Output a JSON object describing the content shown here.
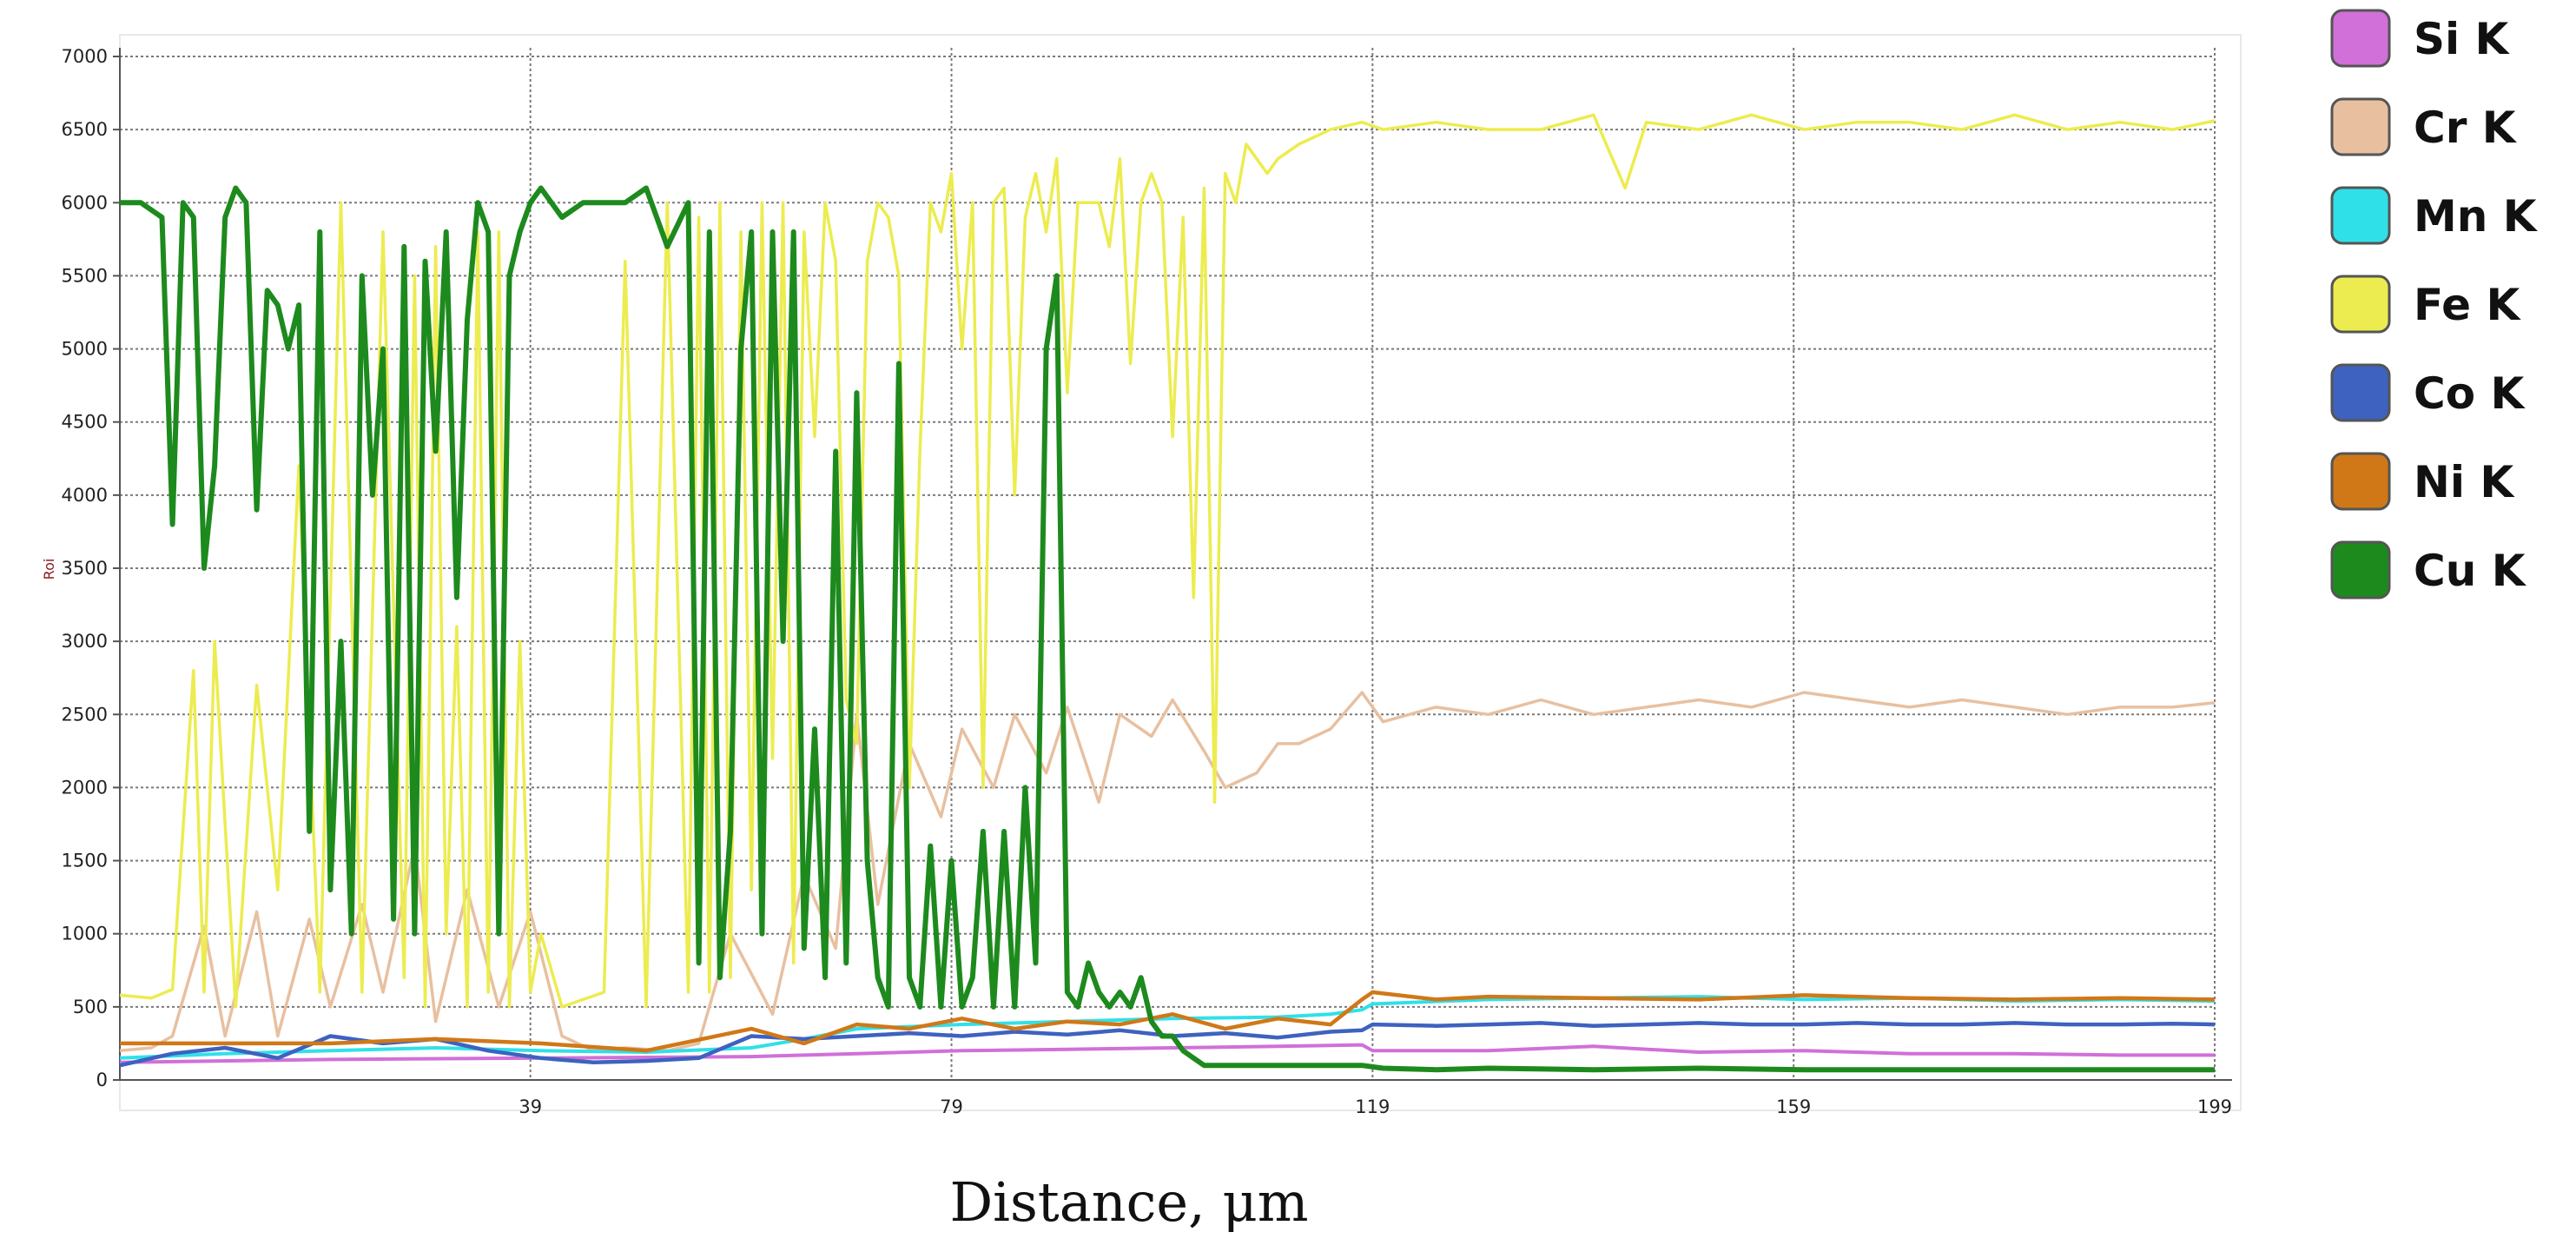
{
  "chart_data": {
    "type": "line",
    "xlabel": "Distance, μm",
    "ylabel": "Roi",
    "xlim": [
      0,
      199
    ],
    "ylim": [
      0,
      7000
    ],
    "xticks": [
      39,
      79,
      119,
      159,
      199
    ],
    "yticks": [
      0,
      500,
      1000,
      1500,
      2000,
      2500,
      3000,
      3500,
      4000,
      4500,
      5000,
      5500,
      6000,
      6500,
      7000
    ],
    "grid": true,
    "legend_position": "right",
    "series": [
      {
        "name": "Si K",
        "color": "#d070d8",
        "x": [
          0,
          20,
          40,
          60,
          70,
          80,
          90,
          100,
          110,
          118,
          119,
          130,
          140,
          150,
          160,
          170,
          180,
          190,
          199
        ],
        "y": [
          120,
          140,
          150,
          160,
          180,
          200,
          210,
          220,
          230,
          240,
          200,
          200,
          230,
          190,
          200,
          180,
          180,
          170,
          170
        ]
      },
      {
        "name": "Cr K",
        "color": "#e8c0a0",
        "x": [
          0,
          3,
          5,
          8,
          10,
          13,
          15,
          18,
          20,
          23,
          25,
          28,
          30,
          33,
          36,
          39,
          42,
          45,
          48,
          52,
          55,
          58,
          62,
          65,
          68,
          70,
          72,
          75,
          78,
          80,
          83,
          85,
          88,
          90,
          93,
          95,
          98,
          100,
          103,
          105,
          108,
          110,
          112,
          115,
          118,
          120,
          125,
          130,
          135,
          140,
          145,
          150,
          155,
          160,
          165,
          170,
          175,
          180,
          185,
          190,
          195,
          199
        ],
        "y": [
          200,
          220,
          300,
          1050,
          300,
          1150,
          300,
          1100,
          500,
          1200,
          600,
          1600,
          400,
          1300,
          500,
          1150,
          300,
          200,
          220,
          200,
          250,
          1000,
          450,
          1400,
          900,
          2500,
          1200,
          2300,
          1800,
          2400,
          2000,
          2500,
          2100,
          2550,
          1900,
          2500,
          2350,
          2600,
          2250,
          2000,
          2100,
          2300,
          2300,
          2400,
          2650,
          2450,
          2550,
          2500,
          2600,
          2500,
          2550,
          2600,
          2550,
          2650,
          2600,
          2550,
          2600,
          2550,
          2500,
          2550,
          2550,
          2580
        ]
      },
      {
        "name": "Mn K",
        "color": "#30e0e8",
        "x": [
          0,
          10,
          20,
          30,
          40,
          50,
          60,
          65,
          70,
          80,
          90,
          100,
          110,
          115,
          118,
          119,
          130,
          140,
          150,
          160,
          170,
          180,
          190,
          199
        ],
        "y": [
          150,
          180,
          200,
          220,
          200,
          190,
          220,
          280,
          350,
          380,
          400,
          420,
          430,
          450,
          480,
          520,
          550,
          560,
          570,
          550,
          560,
          540,
          550,
          540
        ]
      },
      {
        "name": "Fe K",
        "color": "#ecec50",
        "x": [
          0,
          3,
          5,
          7,
          8,
          9,
          11,
          13,
          15,
          17,
          19,
          21,
          23,
          25,
          27,
          28,
          29,
          30,
          31,
          32,
          33,
          34,
          35,
          36,
          37,
          38,
          39,
          40,
          42,
          44,
          46,
          48,
          50,
          52,
          54,
          55,
          56,
          57,
          58,
          59,
          60,
          61,
          62,
          63,
          64,
          65,
          66,
          67,
          68,
          69,
          70,
          71,
          72,
          73,
          74,
          75,
          76,
          77,
          78,
          79,
          80,
          81,
          82,
          83,
          84,
          85,
          86,
          87,
          88,
          89,
          90,
          91,
          92,
          93,
          94,
          95,
          96,
          97,
          98,
          99,
          100,
          101,
          102,
          103,
          104,
          105,
          106,
          107,
          108,
          109,
          110,
          112,
          115,
          118,
          120,
          125,
          130,
          135,
          140,
          143,
          145,
          150,
          155,
          160,
          165,
          170,
          175,
          180,
          185,
          190,
          195,
          199
        ],
        "y": [
          580,
          560,
          620,
          2800,
          600,
          3000,
          500,
          2700,
          1300,
          4200,
          600,
          6000,
          600,
          5800,
          700,
          5500,
          500,
          5700,
          1000,
          3100,
          500,
          5800,
          600,
          5800,
          500,
          3000,
          600,
          1000,
          500,
          550,
          600,
          5600,
          500,
          6000,
          600,
          5900,
          600,
          6000,
          700,
          5800,
          1300,
          6000,
          2200,
          6000,
          800,
          5800,
          4400,
          6000,
          5600,
          2600,
          2300,
          5600,
          6000,
          5900,
          5500,
          2000,
          4300,
          6000,
          5800,
          6200,
          5000,
          6000,
          2000,
          6000,
          6100,
          4000,
          5900,
          6200,
          5800,
          6300,
          4700,
          6000,
          6000,
          6000,
          5700,
          6300,
          4900,
          6000,
          6200,
          6000,
          4400,
          5900,
          3300,
          6100,
          1900,
          6200,
          6000,
          6400,
          6300,
          6200,
          6300,
          6400,
          6500,
          6550,
          6500,
          6550,
          6500,
          6500,
          6600,
          6100,
          6550,
          6500,
          6600,
          6500,
          6550,
          6550,
          6500,
          6600,
          6500,
          6550,
          6500,
          6560
        ]
      },
      {
        "name": "Co K",
        "color": "#3d62c0",
        "x": [
          0,
          5,
          10,
          15,
          20,
          25,
          30,
          35,
          40,
          45,
          50,
          55,
          60,
          65,
          70,
          75,
          80,
          85,
          90,
          95,
          100,
          105,
          110,
          115,
          118,
          119,
          125,
          130,
          135,
          140,
          145,
          150,
          155,
          160,
          165,
          170,
          175,
          180,
          185,
          190,
          195,
          199
        ],
        "y": [
          100,
          180,
          220,
          150,
          300,
          250,
          280,
          200,
          150,
          120,
          130,
          150,
          300,
          280,
          300,
          320,
          300,
          330,
          310,
          340,
          300,
          320,
          290,
          330,
          340,
          380,
          370,
          380,
          390,
          370,
          380,
          390,
          380,
          380,
          390,
          380,
          380,
          390,
          380,
          380,
          385,
          380
        ]
      },
      {
        "name": "Ni K",
        "color": "#d07818",
        "x": [
          0,
          10,
          20,
          30,
          40,
          50,
          60,
          65,
          70,
          75,
          80,
          85,
          90,
          95,
          100,
          105,
          110,
          115,
          118,
          119,
          125,
          130,
          140,
          150,
          160,
          170,
          180,
          190,
          199
        ],
        "y": [
          250,
          250,
          250,
          280,
          250,
          200,
          350,
          250,
          380,
          350,
          420,
          350,
          400,
          380,
          450,
          350,
          420,
          380,
          550,
          600,
          550,
          570,
          560,
          550,
          580,
          560,
          550,
          560,
          550
        ]
      },
      {
        "name": "Cu K",
        "color": "#1d8a1d",
        "x": [
          0,
          2,
          4,
          5,
          6,
          7,
          8,
          9,
          10,
          11,
          12,
          13,
          14,
          15,
          16,
          17,
          18,
          19,
          20,
          21,
          22,
          23,
          24,
          25,
          26,
          27,
          28,
          29,
          30,
          31,
          32,
          33,
          34,
          35,
          36,
          37,
          38,
          39,
          40,
          42,
          44,
          46,
          48,
          50,
          52,
          54,
          55,
          56,
          57,
          58,
          59,
          60,
          61,
          62,
          63,
          64,
          65,
          66,
          67,
          68,
          69,
          70,
          71,
          72,
          73,
          74,
          75,
          76,
          77,
          78,
          79,
          80,
          81,
          82,
          83,
          84,
          85,
          86,
          87,
          88,
          89,
          90,
          91,
          92,
          93,
          94,
          95,
          96,
          97,
          98,
          99,
          100,
          101,
          102,
          103,
          104,
          105,
          106,
          107,
          108,
          109,
          110,
          111,
          112,
          113,
          114,
          115,
          116,
          117,
          118,
          120,
          125,
          130,
          140,
          150,
          160,
          170,
          180,
          190,
          199
        ],
        "y": [
          6000,
          6000,
          5900,
          3800,
          6000,
          5900,
          3500,
          4200,
          5900,
          6100,
          6000,
          3900,
          5400,
          5300,
          5000,
          5300,
          1700,
          5800,
          1300,
          3000,
          1000,
          5500,
          4000,
          5000,
          1100,
          5700,
          1000,
          5600,
          4300,
          5800,
          3300,
          5200,
          6000,
          5800,
          1000,
          5500,
          5800,
          6000,
          6100,
          5900,
          6000,
          6000,
          6000,
          6100,
          5700,
          6000,
          800,
          5800,
          700,
          1700,
          5000,
          5800,
          1000,
          5800,
          3000,
          5800,
          900,
          2400,
          700,
          4300,
          800,
          4700,
          1500,
          700,
          500,
          4900,
          700,
          500,
          1600,
          500,
          1500,
          500,
          700,
          1700,
          500,
          1700,
          500,
          2000,
          800,
          5000,
          5500,
          600,
          500,
          800,
          600,
          500,
          600,
          500,
          700,
          400,
          300,
          300,
          200,
          150,
          100,
          100,
          100,
          100,
          100,
          100,
          100,
          100,
          100,
          100,
          100,
          100,
          100,
          100,
          100,
          100,
          80,
          70,
          80,
          70,
          80,
          70,
          70,
          70,
          70,
          70
        ]
      }
    ]
  }
}
